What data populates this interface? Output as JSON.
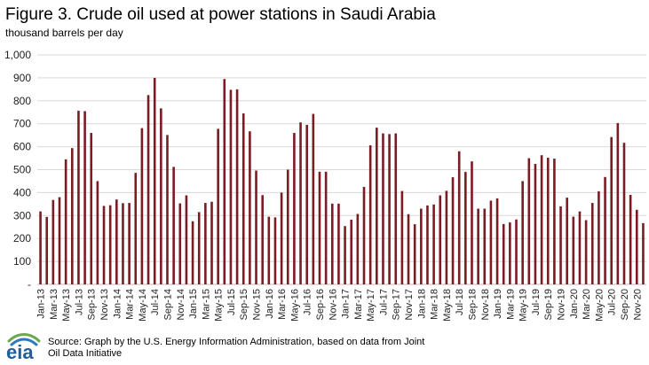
{
  "chart_data": {
    "type": "bar",
    "title": "Figure 3. Crude oil used at power stations in Saudi Arabia",
    "subtitle": "thousand barrels per day",
    "xlabel": "",
    "ylabel": "",
    "ylim": [
      0,
      1000
    ],
    "yticks": [
      "-",
      "100",
      "200",
      "300",
      "400",
      "500",
      "600",
      "700",
      "800",
      "900",
      "1,000"
    ],
    "grid": true,
    "bar_color": "#7b1c24",
    "categories": [
      "Jan-13",
      "Feb-13",
      "Mar-13",
      "Apr-13",
      "May-13",
      "Jun-13",
      "Jul-13",
      "Aug-13",
      "Sep-13",
      "Oct-13",
      "Nov-13",
      "Dec-13",
      "Jan-14",
      "Feb-14",
      "Mar-14",
      "Apr-14",
      "May-14",
      "Jun-14",
      "Jul-14",
      "Aug-14",
      "Sep-14",
      "Oct-14",
      "Nov-14",
      "Dec-14",
      "Jan-15",
      "Feb-15",
      "Mar-15",
      "Apr-15",
      "May-15",
      "Jun-15",
      "Jul-15",
      "Aug-15",
      "Sep-15",
      "Oct-15",
      "Nov-15",
      "Dec-15",
      "Jan-16",
      "Feb-16",
      "Mar-16",
      "Apr-16",
      "May-16",
      "Jun-16",
      "Jul-16",
      "Aug-16",
      "Sep-16",
      "Oct-16",
      "Nov-16",
      "Dec-16",
      "Jan-17",
      "Feb-17",
      "Mar-17",
      "Apr-17",
      "May-17",
      "Jun-17",
      "Jul-17",
      "Aug-17",
      "Sep-17",
      "Oct-17",
      "Nov-17",
      "Dec-17",
      "Jan-18",
      "Feb-18",
      "Mar-18",
      "Apr-18",
      "May-18",
      "Jun-18",
      "Jul-18",
      "Aug-18",
      "Sep-18",
      "Oct-18",
      "Nov-18",
      "Dec-18",
      "Jan-19",
      "Feb-19",
      "Mar-19",
      "Apr-19",
      "May-19",
      "Jun-19",
      "Jul-19",
      "Aug-19",
      "Sep-19",
      "Oct-19",
      "Nov-19",
      "Dec-19",
      "Jan-20",
      "Feb-20",
      "Mar-20",
      "Apr-20",
      "May-20",
      "Jun-20",
      "Jul-20",
      "Aug-20",
      "Sep-20",
      "Oct-20",
      "Nov-20",
      "Dec-20"
    ],
    "tick_labels": [
      "Jan-13",
      "Mar-13",
      "May-13",
      "Jul-13",
      "Sep-13",
      "Nov-13",
      "Jan-14",
      "Mar-14",
      "May-14",
      "Jul-14",
      "Sep-14",
      "Nov-14",
      "Jan-15",
      "Mar-15",
      "May-15",
      "Jul-15",
      "Sep-15",
      "Nov-15",
      "Jan-16",
      "Mar-16",
      "May-16",
      "Jul-16",
      "Sep-16",
      "Nov-16",
      "Jan-17",
      "Mar-17",
      "May-17",
      "Jul-17",
      "Sep-17",
      "Nov-17",
      "Jan-18",
      "Mar-18",
      "May-18",
      "Jul-18",
      "Sep-18",
      "Nov-18",
      "Jan-19",
      "Mar-19",
      "May-19",
      "Jul-19",
      "Sep-19",
      "Nov-19",
      "Jan-20",
      "Mar-20",
      "May-20",
      "Jul-20",
      "Sep-20",
      "Nov-20"
    ],
    "values": [
      318,
      294,
      368,
      380,
      545,
      594,
      757,
      755,
      660,
      450,
      342,
      345,
      370,
      354,
      355,
      486,
      681,
      825,
      900,
      767,
      651,
      512,
      353,
      388,
      275,
      315,
      355,
      360,
      678,
      895,
      848,
      850,
      745,
      667,
      496,
      389,
      295,
      292,
      400,
      500,
      660,
      706,
      695,
      743,
      491,
      491,
      352,
      352,
      254,
      282,
      307,
      425,
      606,
      683,
      658,
      655,
      658,
      407,
      306,
      262,
      330,
      344,
      348,
      388,
      408,
      467,
      580,
      490,
      536,
      330,
      330,
      365,
      375,
      263,
      270,
      283,
      450,
      550,
      525,
      563,
      552,
      548,
      340,
      378,
      295,
      318,
      280,
      355,
      406,
      468,
      642,
      703,
      617,
      390,
      325,
      267
    ]
  },
  "source": "Source: Graph by the U.S. Energy Information Administration, based on data from Joint Oil Data Initiative",
  "logo": {
    "icon": "eia-logo-icon",
    "text": "eia",
    "color": "#1f5fa0"
  }
}
